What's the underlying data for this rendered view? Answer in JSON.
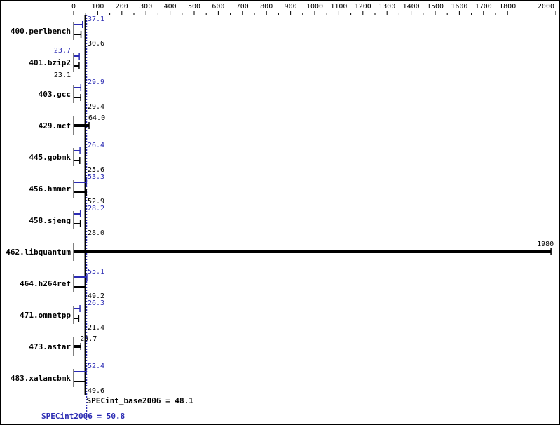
{
  "chart_data": {
    "type": "bar",
    "orientation": "horizontal",
    "xlim": [
      0,
      2000
    ],
    "x_ticks": [
      0,
      100,
      200,
      300,
      400,
      500,
      600,
      700,
      800,
      900,
      1000,
      1100,
      1200,
      1300,
      1400,
      1500,
      1600,
      1700,
      1800,
      2000
    ],
    "categories": [
      "400.perlbench",
      "401.bzip2",
      "403.gcc",
      "429.mcf",
      "445.gobmk",
      "456.hmmer",
      "458.sjeng",
      "462.libquantum",
      "464.h264ref",
      "471.omnetpp",
      "473.astar",
      "483.xalancbmk"
    ],
    "series": [
      {
        "name": "SPECint_base2006",
        "color": "#000000",
        "values": [
          30.6,
          23.1,
          29.4,
          64.0,
          25.6,
          52.9,
          28.0,
          1980,
          49.2,
          21.4,
          29.7,
          49.6
        ]
      },
      {
        "name": "SPECint2006",
        "color": "#2b2bb3",
        "values": [
          37.1,
          23.7,
          29.9,
          null,
          26.4,
          53.3,
          28.2,
          null,
          55.1,
          26.3,
          null,
          52.4
        ]
      }
    ],
    "value_labels": {
      "base": [
        "30.6",
        "23.1",
        "29.4",
        "64.0",
        "25.6",
        "52.9",
        "28.0",
        "1980",
        "49.2",
        "21.4",
        "29.7",
        "49.6"
      ],
      "peak": [
        "37.1",
        "23.7",
        "29.9",
        "",
        "26.4",
        "53.3",
        "28.2",
        "",
        "55.1",
        "26.3",
        "",
        "52.4"
      ]
    },
    "reference_lines": [
      {
        "label": "SPECint_base2006 = 48.1",
        "value": 48.1,
        "color": "#000000"
      },
      {
        "label": "SPECint2006 = 50.8",
        "value": 50.8,
        "color": "#2b2bb3"
      }
    ],
    "grid": false
  }
}
